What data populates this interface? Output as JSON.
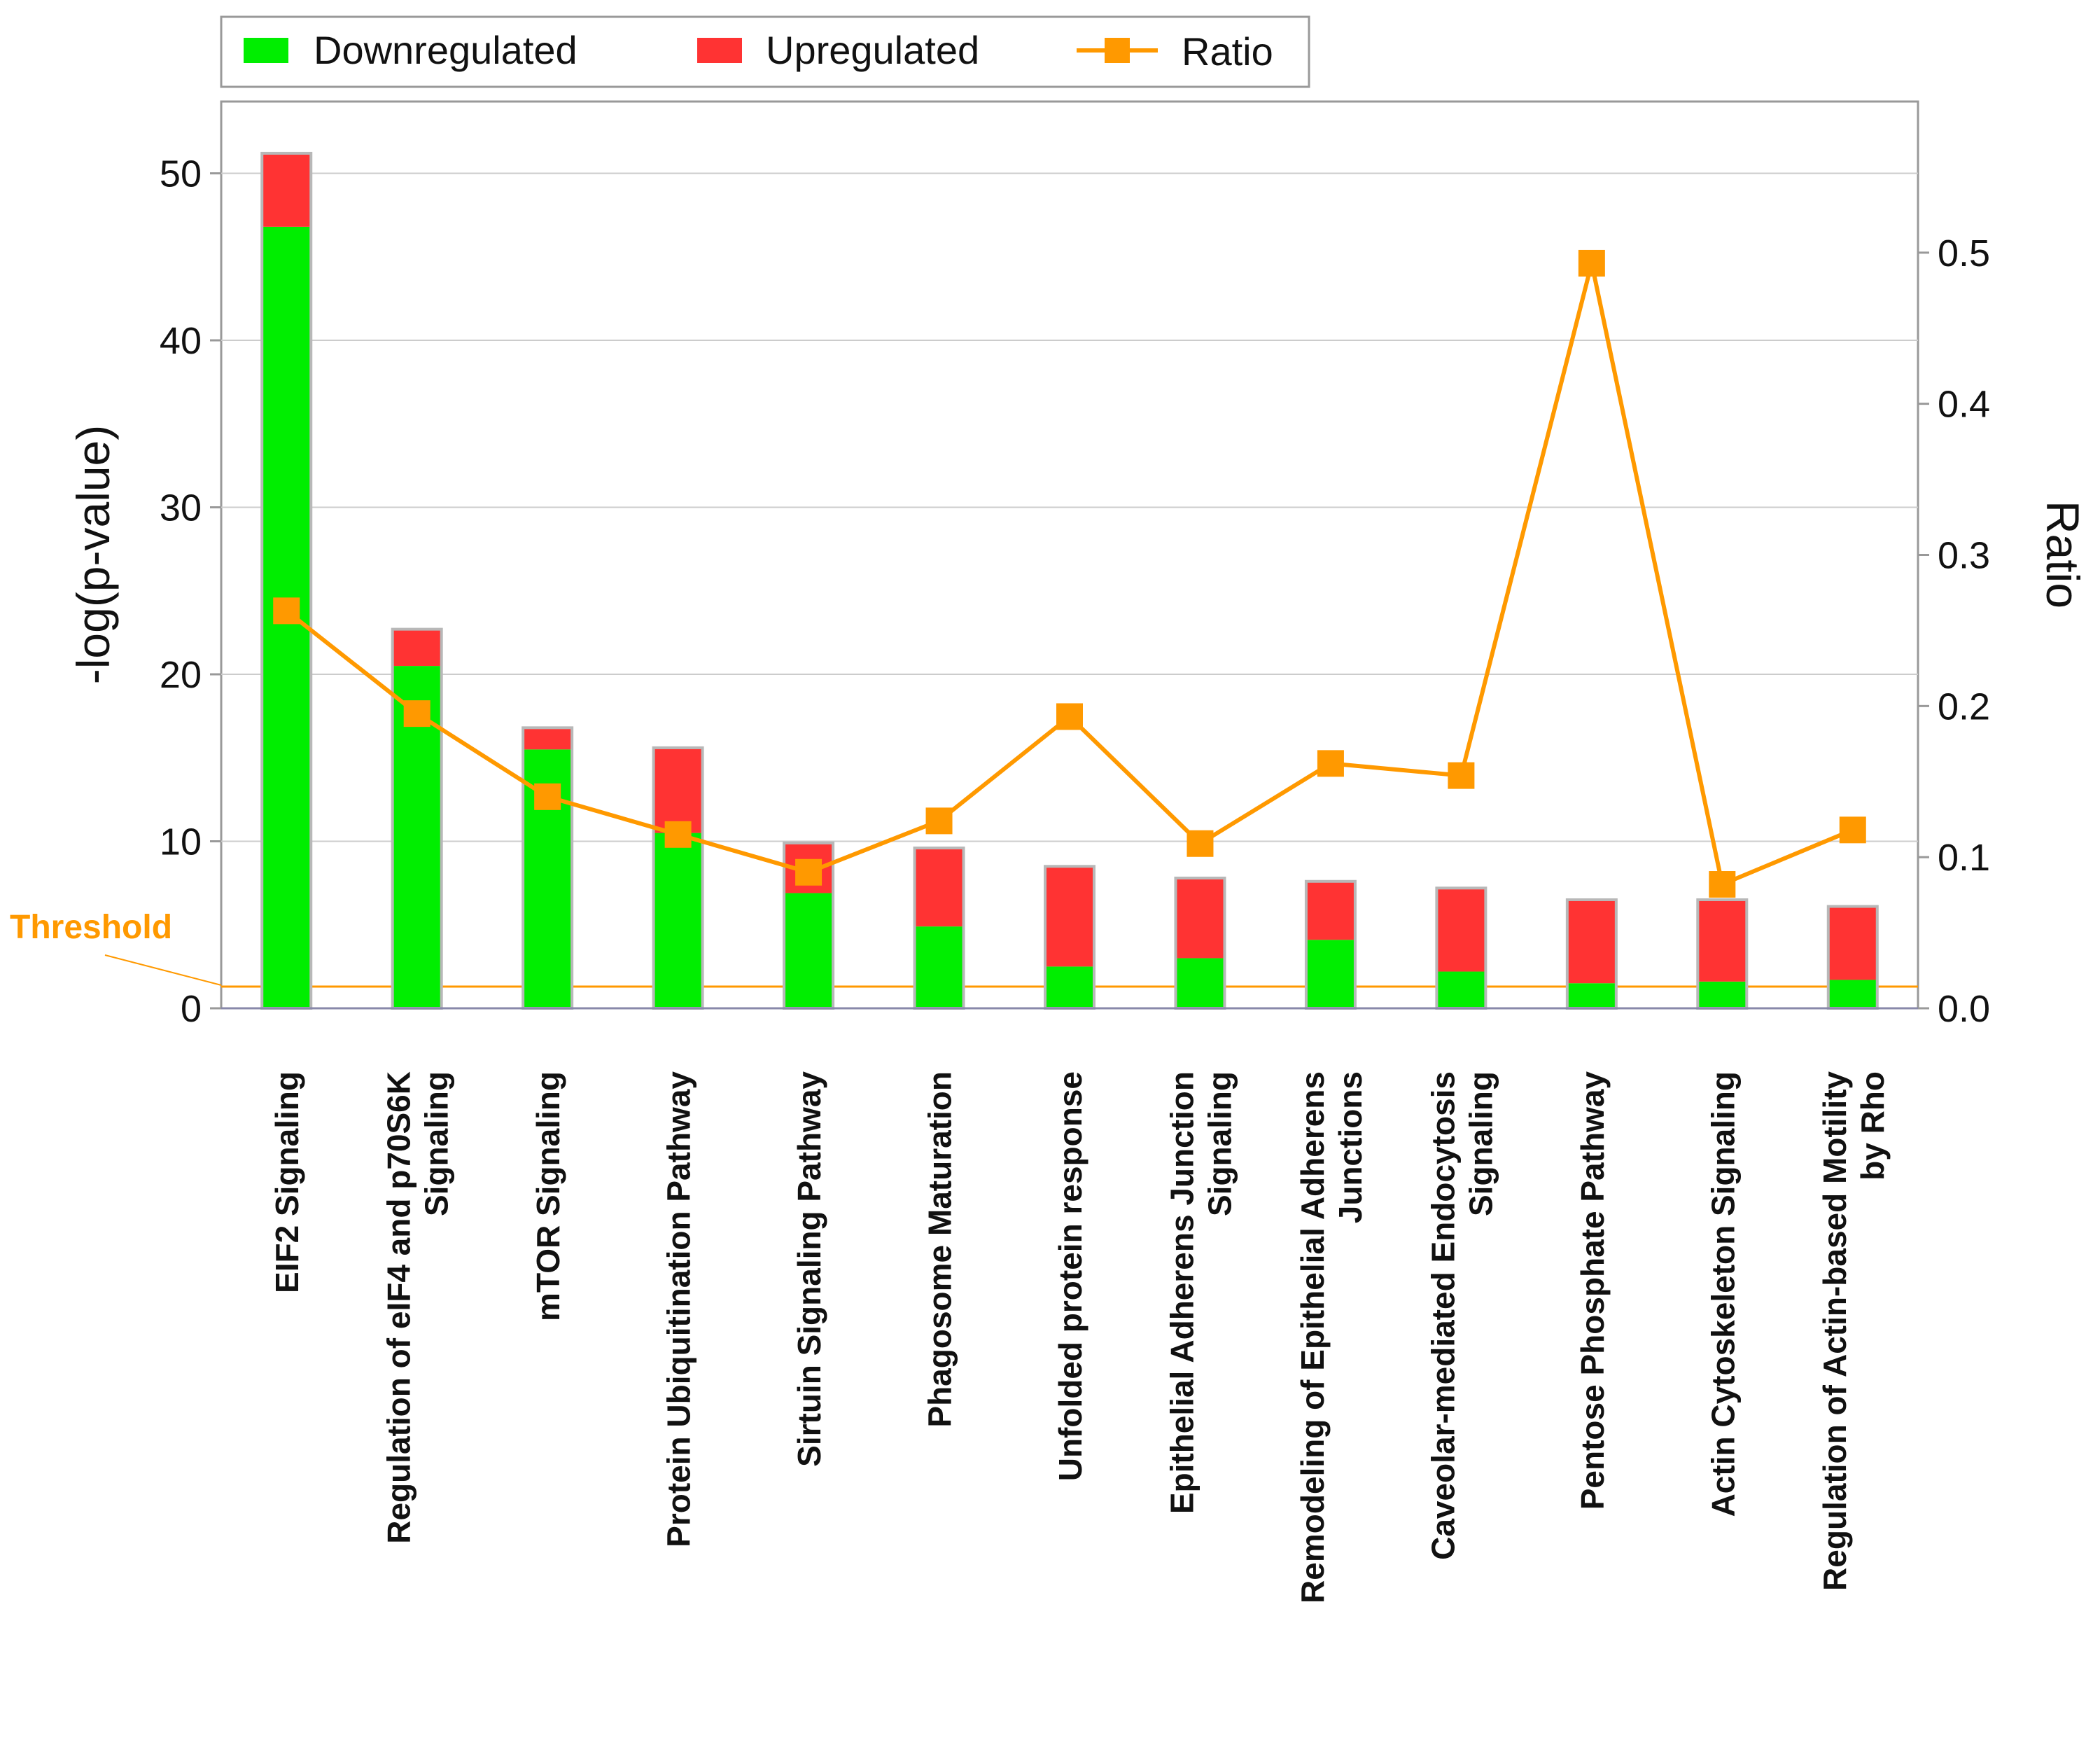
{
  "chart_data": {
    "type": "bar",
    "stacked": true,
    "categories": [
      [
        "EIF2 Signaling"
      ],
      [
        "Regulation of eIF4 and p70S6K",
        "Signaling"
      ],
      [
        "mTOR Signaling"
      ],
      [
        "Protein Ubiquitination Pathway"
      ],
      [
        "Sirtuin Signaling Pathway"
      ],
      [
        "Phagosome Maturation"
      ],
      [
        "Unfolded protein response"
      ],
      [
        "Epithelial Adherens Junction",
        "Signaling"
      ],
      [
        "Remodeling of Epithelial Adherens",
        "Junctions"
      ],
      [
        "Caveolar-mediated Endocytosis",
        "Signaling"
      ],
      [
        "Pentose Phosphate Pathway"
      ],
      [
        "Actin Cytoskeleton Signaling"
      ],
      [
        "Regulation of Actin-based Motility",
        "by Rho"
      ]
    ],
    "series": [
      {
        "name": "Downregulated",
        "color": "#00ee00",
        "values": [
          46.8,
          20.5,
          15.5,
          10.5,
          6.9,
          4.9,
          2.5,
          3.0,
          4.1,
          2.2,
          1.5,
          1.6,
          1.7
        ]
      },
      {
        "name": "Upregulated",
        "color": "#ff3333",
        "values": [
          4.4,
          2.2,
          1.3,
          5.1,
          3.0,
          4.7,
          6.0,
          4.8,
          3.5,
          5.0,
          5.0,
          4.9,
          4.4
        ]
      }
    ],
    "ratio": {
      "name": "Ratio",
      "color": "#ff9900",
      "values": [
        0.263,
        0.195,
        0.14,
        0.115,
        0.09,
        0.124,
        0.193,
        0.109,
        0.162,
        0.154,
        0.493,
        0.082,
        0.118
      ]
    },
    "threshold": {
      "label": "Threshold",
      "value": 1.3,
      "color": "#ff9900"
    },
    "ylabel": "-log(p-value)",
    "y2label": "Ratio",
    "ylim": [
      0,
      54.3
    ],
    "y2lim": [
      0,
      0.6
    ],
    "yticks": [
      0,
      10,
      20,
      30,
      40,
      50
    ],
    "y2ticks": [
      "0.0",
      "0.1",
      "0.2",
      "0.3",
      "0.4",
      "0.5"
    ],
    "grid": true,
    "legend": "top-left"
  }
}
